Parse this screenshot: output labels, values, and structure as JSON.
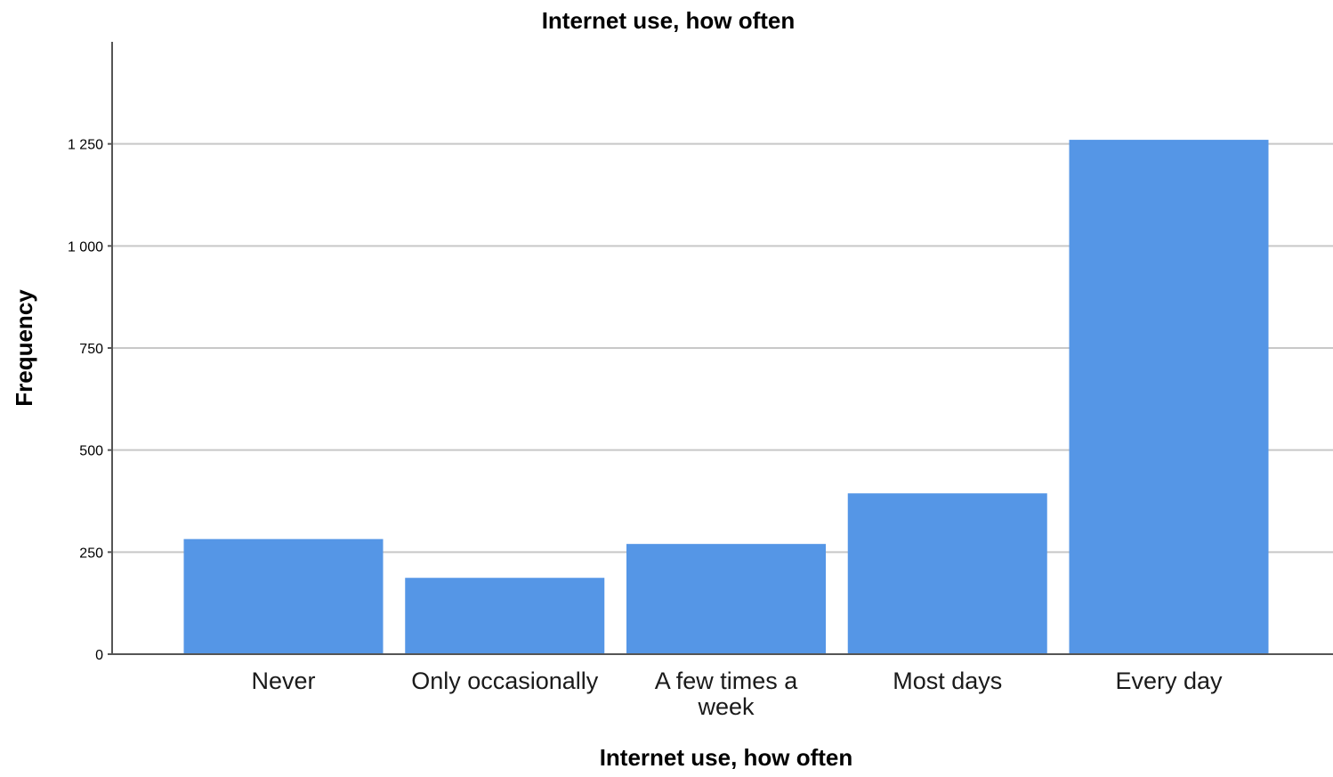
{
  "chart_data": {
    "type": "bar",
    "title": "Internet use, how often",
    "xlabel": "Internet use, how often",
    "ylabel": "Frequency",
    "categories": [
      "Never",
      "Only occasionally",
      "A few times a week",
      "Most days",
      "Every day"
    ],
    "category_label_lines": [
      [
        "Never"
      ],
      [
        "Only occasionally"
      ],
      [
        "A few times a",
        "week"
      ],
      [
        "Most days"
      ],
      [
        "Every day"
      ]
    ],
    "values": [
      282,
      187,
      270,
      394,
      1260
    ],
    "ylim": [
      0,
      1500
    ],
    "yticks": [
      0,
      250,
      500,
      750,
      1000,
      1250
    ],
    "ytick_labels": [
      "0",
      "250",
      "500",
      "750",
      "1 000",
      "1 250"
    ],
    "grid": true,
    "bar_color": "#5596e6",
    "gridline_color": "#c8c8c8",
    "axis_color": "#555555"
  }
}
